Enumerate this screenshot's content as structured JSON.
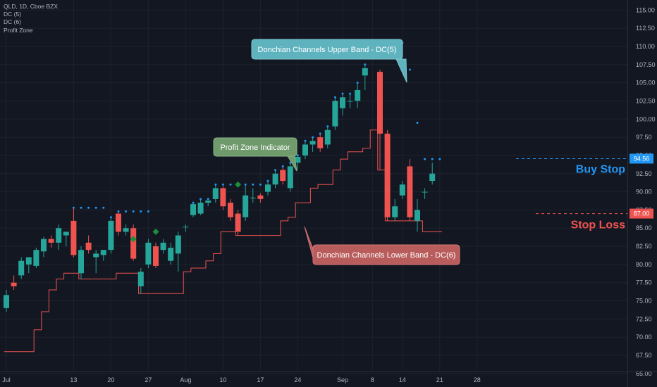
{
  "legend": {
    "title": "QLD, 1D, Cboe BZX",
    "items": [
      "DC (5)",
      "DC (6)",
      "Profit Zone"
    ]
  },
  "colors": {
    "up": "#26a69a",
    "down": "#ef5350",
    "background": "#131722",
    "grid": "#1e222d",
    "upper_band": "#2196f3",
    "lower_band": "#ef5350",
    "profit_zone": "#1e8c3a",
    "buy_stop": "#2196f3",
    "stop_loss": "#ef5350"
  },
  "annotations": {
    "upper_band": "Donchian Channels Upper Band - DC(5)",
    "profit_zone": "Profit Zone Indicator",
    "lower_band": "Donchian Channels Lower Band - DC(6)",
    "buy_stop": "Buy Stop",
    "stop_loss": "Stop Loss"
  },
  "price_tags": {
    "buy_stop": "94.56",
    "stop_loss": "87.00"
  },
  "chart_data": {
    "type": "candlestick",
    "symbol": "QLD",
    "interval": "1D",
    "exchange": "Cboe BZX",
    "y_axis": {
      "range": [
        64.5,
        115.5
      ],
      "ticks": [
        "65.00",
        "67.50",
        "70.00",
        "72.50",
        "75.00",
        "77.50",
        "80.00",
        "82.50",
        "85.00",
        "87.50",
        "90.00",
        "92.50",
        "95.00",
        "97.50",
        "100.00",
        "102.50",
        "105.00",
        "107.50",
        "110.00",
        "112.50",
        "115.00"
      ]
    },
    "x_axis": {
      "ticks": [
        {
          "label": "Jul",
          "day": 0
        },
        {
          "label": "13",
          "day": 9
        },
        {
          "label": "20",
          "day": 14
        },
        {
          "label": "27",
          "day": 19
        },
        {
          "label": "Aug",
          "day": 24
        },
        {
          "label": "10",
          "day": 29
        },
        {
          "label": "17",
          "day": 34
        },
        {
          "label": "24",
          "day": 39
        },
        {
          "label": "Sep",
          "day": 45
        },
        {
          "label": "8",
          "day": 49
        },
        {
          "label": "14",
          "day": 53
        },
        {
          "label": "21",
          "day": 58
        },
        {
          "label": "28",
          "day": 63
        }
      ]
    },
    "candles": [
      {
        "o": 74.0,
        "h": 76.5,
        "l": 73.5,
        "c": 75.8
      },
      {
        "o": 77.5,
        "h": 78.5,
        "l": 76.5,
        "c": 77.0
      },
      {
        "o": 78.5,
        "h": 81.0,
        "l": 78.0,
        "c": 80.5
      },
      {
        "o": 80.0,
        "h": 81.0,
        "l": 78.8,
        "c": 81.0
      },
      {
        "o": 79.8,
        "h": 82.3,
        "l": 79.5,
        "c": 82.0
      },
      {
        "o": 81.8,
        "h": 83.8,
        "l": 81.0,
        "c": 83.5
      },
      {
        "o": 83.5,
        "h": 84.0,
        "l": 82.3,
        "c": 83.0
      },
      {
        "o": 83.0,
        "h": 85.5,
        "l": 82.0,
        "c": 85.0
      },
      {
        "o": 84.0,
        "h": 84.5,
        "l": 82.5,
        "c": 84.5
      },
      {
        "o": 86.0,
        "h": 87.8,
        "l": 81.0,
        "c": 81.3
      },
      {
        "o": 78.8,
        "h": 82.5,
        "l": 78.0,
        "c": 82.0
      },
      {
        "o": 83.0,
        "h": 84.0,
        "l": 81.5,
        "c": 82.0
      },
      {
        "o": 81.0,
        "h": 82.0,
        "l": 78.8,
        "c": 81.5
      },
      {
        "o": 81.3,
        "h": 82.0,
        "l": 80.5,
        "c": 82.0
      },
      {
        "o": 82.0,
        "h": 86.5,
        "l": 81.5,
        "c": 86.0
      },
      {
        "o": 87.0,
        "h": 87.3,
        "l": 84.0,
        "c": 84.5
      },
      {
        "o": 84.5,
        "h": 85.5,
        "l": 84.0,
        "c": 85.0
      },
      {
        "o": 85.0,
        "h": 85.5,
        "l": 80.5,
        "c": 80.8
      },
      {
        "o": 77.0,
        "h": 79.5,
        "l": 76.0,
        "c": 79.0
      },
      {
        "o": 80.0,
        "h": 83.5,
        "l": 79.5,
        "c": 83.0
      },
      {
        "o": 82.5,
        "h": 83.0,
        "l": 79.5,
        "c": 79.8
      },
      {
        "o": 82.0,
        "h": 83.5,
        "l": 81.5,
        "c": 83.0
      },
      {
        "o": 80.5,
        "h": 83.0,
        "l": 80.0,
        "c": 82.3
      },
      {
        "o": 81.5,
        "h": 84.5,
        "l": 79.0,
        "c": 84.0
      },
      {
        "o": 85.2,
        "h": 85.5,
        "l": 84.5,
        "c": 85.2
      },
      {
        "o": 86.8,
        "h": 88.5,
        "l": 86.5,
        "c": 88.3
      },
      {
        "o": 87.0,
        "h": 89.0,
        "l": 86.8,
        "c": 88.5
      },
      {
        "o": 88.5,
        "h": 88.8,
        "l": 88.0,
        "c": 88.8
      },
      {
        "o": 89.0,
        "h": 91.0,
        "l": 88.5,
        "c": 90.5
      },
      {
        "o": 90.5,
        "h": 90.8,
        "l": 87.5,
        "c": 88.0
      },
      {
        "o": 88.5,
        "h": 89.0,
        "l": 86.0,
        "c": 86.5
      },
      {
        "o": 87.0,
        "h": 87.5,
        "l": 84.0,
        "c": 84.5
      },
      {
        "o": 86.5,
        "h": 91.0,
        "l": 86.0,
        "c": 89.5
      },
      {
        "o": 89.2,
        "h": 90.5,
        "l": 88.5,
        "c": 89.2
      },
      {
        "o": 89.5,
        "h": 89.8,
        "l": 88.5,
        "c": 89.0
      },
      {
        "o": 90.0,
        "h": 91.5,
        "l": 89.5,
        "c": 91.0
      },
      {
        "o": 91.0,
        "h": 93.0,
        "l": 90.5,
        "c": 92.5
      },
      {
        "o": 93.0,
        "h": 93.5,
        "l": 91.0,
        "c": 91.5
      },
      {
        "o": 90.5,
        "h": 94.0,
        "l": 90.0,
        "c": 93.5
      },
      {
        "o": 94.0,
        "h": 95.0,
        "l": 93.0,
        "c": 94.8
      },
      {
        "o": 95.0,
        "h": 97.0,
        "l": 94.5,
        "c": 96.5
      },
      {
        "o": 96.5,
        "h": 97.5,
        "l": 95.5,
        "c": 97.0
      },
      {
        "o": 97.5,
        "h": 98.0,
        "l": 95.5,
        "c": 96.0
      },
      {
        "o": 96.5,
        "h": 99.0,
        "l": 96.0,
        "c": 98.5
      },
      {
        "o": 99.0,
        "h": 103.0,
        "l": 98.5,
        "c": 102.5
      },
      {
        "o": 101.5,
        "h": 103.5,
        "l": 100.5,
        "c": 103.0
      },
      {
        "o": 102.5,
        "h": 103.5,
        "l": 101.5,
        "c": 102.5
      },
      {
        "o": 102.5,
        "h": 105.0,
        "l": 101.5,
        "c": 104.0
      },
      {
        "o": 106.0,
        "h": 107.5,
        "l": 104.0,
        "c": 107.0
      },
      {
        "o": 110.0,
        "h": 110.5,
        "l": 109.5,
        "c": 109.8
      },
      {
        "o": 106.5,
        "h": 106.8,
        "l": 93.0,
        "c": 98.0
      },
      {
        "o": 98.0,
        "h": 98.5,
        "l": 86.0,
        "c": 86.5
      },
      {
        "o": 86.5,
        "h": 89.0,
        "l": 86.0,
        "c": 88.0
      },
      {
        "o": 89.5,
        "h": 91.5,
        "l": 89.0,
        "c": 91.0
      },
      {
        "o": 93.5,
        "h": 94.5,
        "l": 86.0,
        "c": 86.5
      },
      {
        "o": 86.0,
        "h": 89.0,
        "l": 84.5,
        "c": 87.5
      },
      {
        "o": 90.0,
        "h": 90.5,
        "l": 89.0,
        "c": 90.0
      },
      {
        "o": 91.5,
        "h": 94.0,
        "l": 91.0,
        "c": 92.5
      }
    ],
    "upper_band_dots": [
      {
        "i": 9,
        "v": 87.8
      },
      {
        "i": 10,
        "v": 87.8
      },
      {
        "i": 11,
        "v": 87.8
      },
      {
        "i": 12,
        "v": 87.8
      },
      {
        "i": 13,
        "v": 87.8
      },
      {
        "i": 14,
        "v": 86.5
      },
      {
        "i": 15,
        "v": 87.3
      },
      {
        "i": 16,
        "v": 87.3
      },
      {
        "i": 17,
        "v": 87.3
      },
      {
        "i": 18,
        "v": 87.3
      },
      {
        "i": 19,
        "v": 87.3
      },
      {
        "i": 25,
        "v": 88.5
      },
      {
        "i": 26,
        "v": 89.0
      },
      {
        "i": 27,
        "v": 89.0
      },
      {
        "i": 28,
        "v": 91.0
      },
      {
        "i": 29,
        "v": 91.0
      },
      {
        "i": 30,
        "v": 91.0
      },
      {
        "i": 31,
        "v": 91.0
      },
      {
        "i": 32,
        "v": 91.0
      },
      {
        "i": 33,
        "v": 91.0
      },
      {
        "i": 34,
        "v": 91.0
      },
      {
        "i": 35,
        "v": 91.5
      },
      {
        "i": 36,
        "v": 93.0
      },
      {
        "i": 37,
        "v": 93.5
      },
      {
        "i": 38,
        "v": 94.0
      },
      {
        "i": 39,
        "v": 95.0
      },
      {
        "i": 40,
        "v": 97.0
      },
      {
        "i": 41,
        "v": 97.5
      },
      {
        "i": 42,
        "v": 98.0
      },
      {
        "i": 43,
        "v": 99.0
      },
      {
        "i": 44,
        "v": 103.0
      },
      {
        "i": 45,
        "v": 103.5
      },
      {
        "i": 46,
        "v": 103.5
      },
      {
        "i": 47,
        "v": 105.0
      },
      {
        "i": 48,
        "v": 107.5
      },
      {
        "i": 49,
        "v": 110.5
      },
      {
        "i": 50,
        "v": 110.5
      },
      {
        "i": 51,
        "v": 110.5
      },
      {
        "i": 52,
        "v": 110.5
      },
      {
        "i": 53,
        "v": 110.5
      },
      {
        "i": 54,
        "v": 106.8
      },
      {
        "i": 55,
        "v": 99.5
      },
      {
        "i": 56,
        "v": 94.5
      },
      {
        "i": 57,
        "v": 94.5
      },
      {
        "i": 58,
        "v": 94.5
      }
    ],
    "lower_band_steps": [
      [
        -0.3,
        68.0
      ],
      [
        3.7,
        68.0
      ],
      [
        3.7,
        71.0
      ],
      [
        4.7,
        71.0
      ],
      [
        4.7,
        73.5
      ],
      [
        5.7,
        73.5
      ],
      [
        5.7,
        76.5
      ],
      [
        6.7,
        76.5
      ],
      [
        6.7,
        78.0
      ],
      [
        7.7,
        78.0
      ],
      [
        7.7,
        78.8
      ],
      [
        9.7,
        78.8
      ],
      [
        9.7,
        78.0
      ],
      [
        14.7,
        78.0
      ],
      [
        14.7,
        78.8
      ],
      [
        17.7,
        78.8
      ],
      [
        17.7,
        76.0
      ],
      [
        23.7,
        76.0
      ],
      [
        23.7,
        79.0
      ],
      [
        24.7,
        79.0
      ],
      [
        24.7,
        79.5
      ],
      [
        26.7,
        79.5
      ],
      [
        26.7,
        80.5
      ],
      [
        27.7,
        80.5
      ],
      [
        27.7,
        81.5
      ],
      [
        28.7,
        81.5
      ],
      [
        28.7,
        84.5
      ],
      [
        30.7,
        84.5
      ],
      [
        30.7,
        84.0
      ],
      [
        36.7,
        84.0
      ],
      [
        36.7,
        86.0
      ],
      [
        37.7,
        86.0
      ],
      [
        37.7,
        86.5
      ],
      [
        38.7,
        86.5
      ],
      [
        38.7,
        88.5
      ],
      [
        40.7,
        88.5
      ],
      [
        40.7,
        90.5
      ],
      [
        41.7,
        90.5
      ],
      [
        41.7,
        91.0
      ],
      [
        43.7,
        91.0
      ],
      [
        43.7,
        93.0
      ],
      [
        44.7,
        93.0
      ],
      [
        44.7,
        94.5
      ],
      [
        45.7,
        94.5
      ],
      [
        45.7,
        95.5
      ],
      [
        47.7,
        95.5
      ],
      [
        47.7,
        96.0
      ],
      [
        48.7,
        96.0
      ],
      [
        48.7,
        98.5
      ],
      [
        49.7,
        98.5
      ],
      [
        49.7,
        93.0
      ],
      [
        50.7,
        93.0
      ],
      [
        50.7,
        86.0
      ],
      [
        55.7,
        86.0
      ],
      [
        55.7,
        84.5
      ],
      [
        58.3,
        84.5
      ]
    ],
    "profit_zone_markers": [
      {
        "i": 17,
        "v": 83.5
      },
      {
        "i": 20,
        "v": 84.5
      },
      {
        "i": 31,
        "v": 91.0
      }
    ],
    "buy_stop_level": 94.56,
    "stop_loss_level": 87.0
  }
}
